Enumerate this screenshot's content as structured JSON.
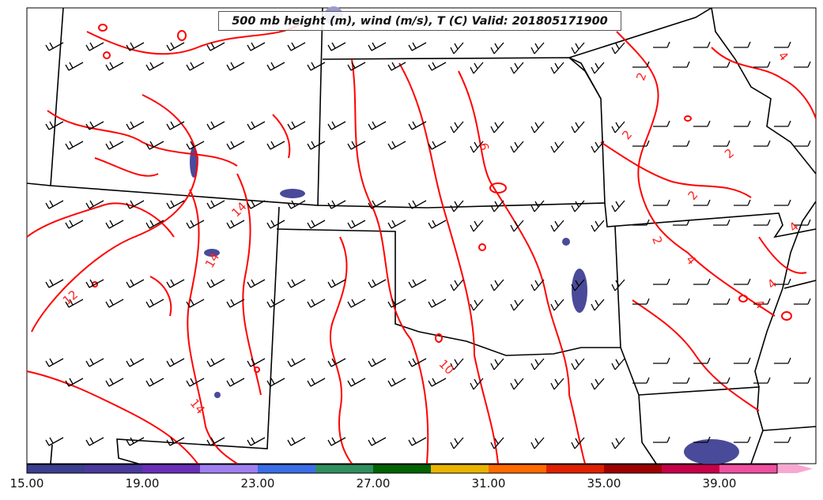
{
  "title": "500 mb height (m), wind (m/s), T (C) Valid: 201805171900",
  "contour_labels": [
    "12",
    "14",
    "14",
    "14",
    "10",
    "6",
    "2",
    "2",
    "2",
    "2",
    "2",
    "4",
    "4",
    "4",
    "4",
    "4"
  ],
  "colorbar": {
    "tick_labels": [
      "15.00",
      "19.00",
      "23.00",
      "27.00",
      "31.00",
      "35.00",
      "39.00"
    ],
    "colors": [
      "#3b3f8f",
      "#4a3a9e",
      "#6a2fb8",
      "#a080f0",
      "#3a6ee8",
      "#2f8f5f",
      "#006400",
      "#e8b400",
      "#ff6a00",
      "#e02000",
      "#a00000",
      "#c8004a",
      "#f050a0",
      "#f8a8d0"
    ]
  },
  "colors": {
    "isotherm": "#ff0000",
    "boundary": "#000000",
    "wind_barb": "#000000",
    "fill": "#4a4a9a"
  }
}
